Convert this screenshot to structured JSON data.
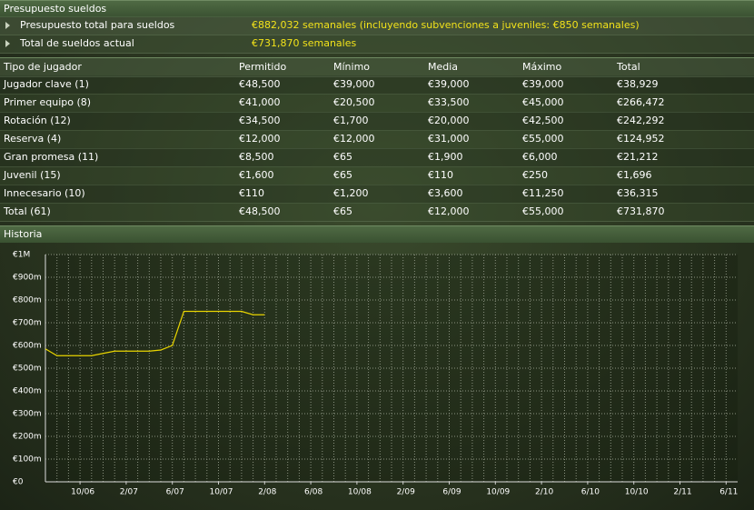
{
  "header": {
    "title": "Presupuesto sueldos"
  },
  "summary": [
    {
      "label": "Presupuesto total para sueldos",
      "value": "€882,032 semanales (incluyendo subvenciones a juveniles: €850 semanales)"
    },
    {
      "label": "Total de sueldos actual",
      "value": "€731,870 semanales"
    }
  ],
  "table": {
    "columns": [
      "Tipo de jugador",
      "Permitido",
      "Mínimo",
      "Media",
      "Máximo",
      "Total"
    ],
    "rows": [
      [
        "Jugador clave (1)",
        "€48,500",
        "€39,000",
        "€39,000",
        "€39,000",
        "€38,929"
      ],
      [
        "Primer equipo (8)",
        "€41,000",
        "€20,500",
        "€33,500",
        "€45,000",
        "€266,472"
      ],
      [
        "Rotación (12)",
        "€34,500",
        "€1,700",
        "€20,000",
        "€42,500",
        "€242,292"
      ],
      [
        "Reserva (4)",
        "€12,000",
        "€12,000",
        "€31,000",
        "€55,000",
        "€124,952"
      ],
      [
        "Gran promesa (11)",
        "€8,500",
        "€65",
        "€1,900",
        "€6,000",
        "€21,212"
      ],
      [
        "Juvenil (15)",
        "€1,600",
        "€65",
        "€110",
        "€250",
        "€1,696"
      ],
      [
        "Innecesario (10)",
        "€110",
        "€1,200",
        "€3,600",
        "€11,250",
        "€36,315"
      ],
      [
        "Total  (61)",
        "€48,500",
        "€65",
        "€12,000",
        "€55,000",
        "€731,870"
      ]
    ]
  },
  "chart_data": {
    "type": "line",
    "title": "Historia",
    "x": [
      "7/06",
      "8/06",
      "9/06",
      "10/06",
      "11/06",
      "12/06",
      "1/07",
      "2/07",
      "3/07",
      "4/07",
      "5/07",
      "6/07",
      "7/07",
      "8/07",
      "9/07",
      "10/07",
      "11/07",
      "12/07",
      "1/08",
      "2/08"
    ],
    "series": [
      {
        "color": "#e8d400",
        "values": [
          585000,
          555000,
          555000,
          555000,
          555000,
          565000,
          575000,
          575000,
          575000,
          575000,
          580000,
          600000,
          750000,
          750000,
          750000,
          750000,
          750000,
          750000,
          735000,
          735000
        ]
      }
    ],
    "xlim": [
      "7/06",
      "7/11"
    ],
    "xticks": [
      "10/06",
      "2/07",
      "6/07",
      "10/07",
      "2/08",
      "6/08",
      "10/08",
      "2/09",
      "6/09",
      "10/09",
      "2/10",
      "6/10",
      "10/10",
      "2/11",
      "6/11"
    ],
    "ylim": [
      0,
      1000000
    ],
    "yticks": [
      {
        "value": 0,
        "label": "€0"
      },
      {
        "value": 100000,
        "label": "€100m"
      },
      {
        "value": 200000,
        "label": "€200m"
      },
      {
        "value": 300000,
        "label": "€300m"
      },
      {
        "value": 400000,
        "label": "€400m"
      },
      {
        "value": 500000,
        "label": "€500m"
      },
      {
        "value": 600000,
        "label": "€600m"
      },
      {
        "value": 700000,
        "label": "€700m"
      },
      {
        "value": 800000,
        "label": "€800m"
      },
      {
        "value": 900000,
        "label": "€900m"
      },
      {
        "value": 1000000,
        "label": "€1M"
      }
    ],
    "grid": true
  }
}
